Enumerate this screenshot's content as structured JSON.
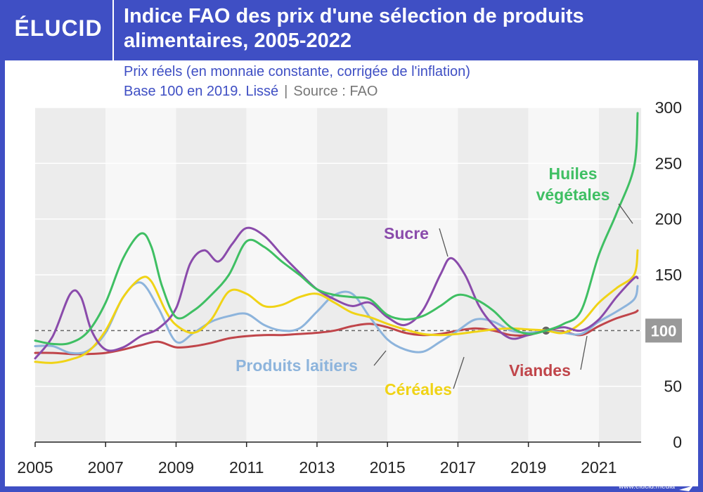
{
  "header": {
    "logo": "ÉLUCID",
    "title": "Indice FAO des prix d'une sélection de produits alimentaires, 2005-2022",
    "subtitle_line1": "Prix réels (en monnaie constante, corrigée de l'inflation)",
    "subtitle_line2": "Base 100 en 2019. Lissé",
    "source": "Source : FAO"
  },
  "footer": {
    "url": "www.elucid.media"
  },
  "colors": {
    "brand": "#3f4fc4"
  },
  "chart_data": {
    "type": "line",
    "xlim": [
      2005,
      2022.2
    ],
    "ylim": [
      0,
      300
    ],
    "xticks": [
      "2005",
      "2007",
      "2009",
      "2011",
      "2013",
      "2015",
      "2017",
      "2019",
      "2021"
    ],
    "yticks": [
      "0",
      "50",
      "100",
      "150",
      "200",
      "250",
      "300"
    ],
    "reference": {
      "value": 100,
      "label": "100",
      "marker_x": 2019.5
    },
    "series": [
      {
        "name": "Huiles végétales",
        "label_lines": [
          "Huiles",
          "végétales"
        ],
        "color": "#3fbf63",
        "x": [
          2005,
          2005.5,
          2006,
          2006.5,
          2007,
          2007.5,
          2008,
          2008.3,
          2008.6,
          2009,
          2009.5,
          2010,
          2010.5,
          2011,
          2011.5,
          2012,
          2012.5,
          2013,
          2013.5,
          2014,
          2014.5,
          2015,
          2015.5,
          2016,
          2016.5,
          2017,
          2017.5,
          2018,
          2018.5,
          2019,
          2019.5,
          2020,
          2020.5,
          2021,
          2021.5,
          2022,
          2022.1
        ],
        "y": [
          91,
          88,
          89,
          99,
          125,
          165,
          187,
          175,
          140,
          112,
          118,
          132,
          150,
          180,
          175,
          162,
          150,
          137,
          132,
          130,
          128,
          114,
          110,
          113,
          122,
          132,
          128,
          118,
          103,
          97,
          100,
          106,
          118,
          168,
          205,
          247,
          295
        ]
      },
      {
        "name": "Sucre",
        "label_lines": [
          "Sucre"
        ],
        "color": "#8a4bab",
        "x": [
          2005,
          2005.5,
          2006,
          2006.3,
          2006.6,
          2007,
          2007.5,
          2008,
          2008.5,
          2009,
          2009.4,
          2009.8,
          2010.2,
          2010.6,
          2011,
          2011.5,
          2012,
          2012.5,
          2013,
          2013.5,
          2014,
          2014.5,
          2015,
          2015.5,
          2016,
          2016.5,
          2016.8,
          2017.2,
          2017.6,
          2018,
          2018.5,
          2019,
          2019.5,
          2020,
          2020.5,
          2021,
          2021.5,
          2022,
          2022.1
        ],
        "y": [
          75,
          95,
          133,
          130,
          100,
          83,
          85,
          95,
          102,
          120,
          160,
          172,
          162,
          178,
          192,
          185,
          168,
          152,
          137,
          128,
          122,
          125,
          112,
          105,
          118,
          150,
          165,
          150,
          122,
          105,
          93,
          96,
          100,
          103,
          100,
          110,
          130,
          147,
          147
        ]
      },
      {
        "name": "Céréales",
        "label_lines": [
          "Céréales"
        ],
        "color": "#f0d316",
        "x": [
          2005,
          2005.5,
          2006,
          2006.5,
          2007,
          2007.5,
          2008,
          2008.3,
          2008.7,
          2009,
          2009.5,
          2010,
          2010.5,
          2011,
          2011.5,
          2012,
          2012.5,
          2013,
          2013.5,
          2014,
          2014.5,
          2015,
          2015.5,
          2016,
          2016.5,
          2017,
          2017.5,
          2018,
          2018.5,
          2019,
          2019.5,
          2020,
          2020.5,
          2021,
          2021.5,
          2022,
          2022.1
        ],
        "y": [
          72,
          71,
          74,
          81,
          100,
          130,
          147,
          144,
          118,
          105,
          98,
          110,
          135,
          133,
          122,
          123,
          130,
          133,
          125,
          116,
          112,
          106,
          101,
          97,
          96,
          97,
          99,
          101,
          102,
          101,
          100,
          98,
          107,
          125,
          138,
          150,
          172
        ]
      },
      {
        "name": "Produits laitiers",
        "label_lines": [
          "Produits laitiers"
        ],
        "color": "#8db4dc",
        "x": [
          2005,
          2005.5,
          2006,
          2006.5,
          2007,
          2007.5,
          2008,
          2008.5,
          2009,
          2009.5,
          2010,
          2010.5,
          2011,
          2011.5,
          2012,
          2012.5,
          2013,
          2013.5,
          2014,
          2014.5,
          2015,
          2015.5,
          2016,
          2016.5,
          2017,
          2017.5,
          2018,
          2018.5,
          2019,
          2019.5,
          2020,
          2020.5,
          2021,
          2021.5,
          2022,
          2022.1
        ],
        "y": [
          86,
          86,
          80,
          82,
          98,
          130,
          143,
          120,
          90,
          98,
          108,
          113,
          115,
          105,
          100,
          102,
          117,
          132,
          133,
          112,
          92,
          83,
          81,
          90,
          100,
          110,
          108,
          100,
          98,
          100,
          98,
          97,
          108,
          117,
          128,
          140
        ]
      },
      {
        "name": "Viandes",
        "label_lines": [
          "Viandes"
        ],
        "color": "#c0454a",
        "x": [
          2005,
          2005.5,
          2006,
          2006.5,
          2007,
          2007.5,
          2008,
          2008.5,
          2009,
          2009.5,
          2010,
          2010.5,
          2011,
          2011.5,
          2012,
          2012.5,
          2013,
          2013.5,
          2014,
          2014.5,
          2015,
          2015.5,
          2016,
          2016.5,
          2017,
          2017.5,
          2018,
          2018.5,
          2019,
          2019.5,
          2020,
          2020.5,
          2021,
          2021.5,
          2022,
          2022.1
        ],
        "y": [
          80,
          80,
          79,
          79,
          80,
          83,
          87,
          90,
          85,
          86,
          89,
          93,
          95,
          96,
          96,
          97,
          98,
          100,
          104,
          106,
          103,
          98,
          96,
          97,
          100,
          102,
          100,
          96,
          96,
          100,
          99,
          96,
          104,
          111,
          116,
          118
        ]
      }
    ]
  }
}
